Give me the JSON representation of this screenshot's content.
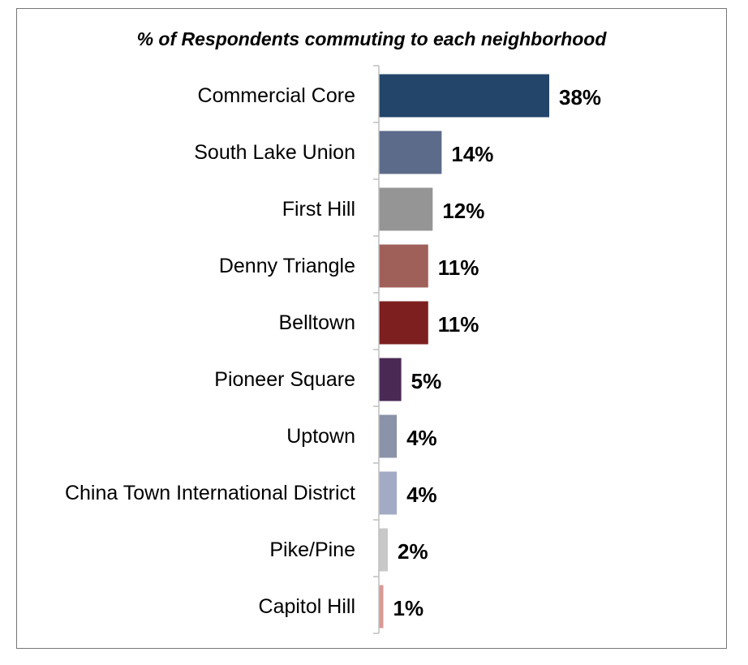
{
  "chart_data": {
    "type": "bar",
    "orientation": "horizontal",
    "title": "% of Respondents commuting to each neighborhood",
    "categories": [
      "Commercial Core",
      "South Lake Union",
      "First Hill",
      "Denny Triangle",
      "Belltown",
      "Pioneer Square",
      "Uptown",
      "China Town International District",
      "Pike/Pine",
      "Capitol Hill"
    ],
    "values": [
      38,
      14,
      12,
      11,
      11,
      5,
      4,
      4,
      2,
      1
    ],
    "value_labels": [
      "38%",
      "14%",
      "12%",
      "11%",
      "11%",
      "5%",
      "4%",
      "4%",
      "2%",
      "1%"
    ],
    "bar_colors": [
      "#23456a",
      "#5c6b8a",
      "#959595",
      "#a0605a",
      "#7d1f1f",
      "#4a2a55",
      "#8a93a8",
      "#a3abc4",
      "#c8c8c8",
      "#d79a95"
    ],
    "xlabel": "",
    "ylabel": "",
    "xlim": [
      0,
      40
    ],
    "grid": false,
    "legend": "none"
  }
}
